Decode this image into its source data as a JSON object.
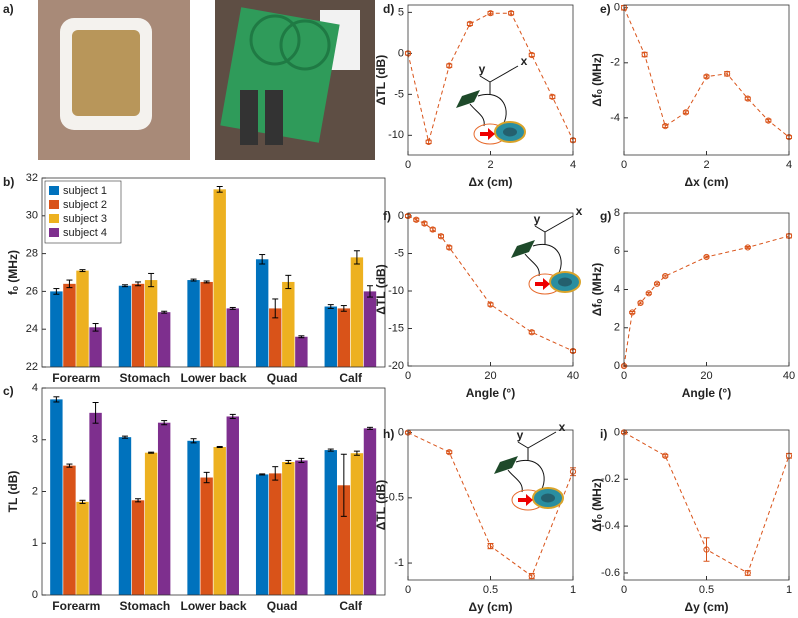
{
  "photo_panel": {
    "label": "a)"
  },
  "chart_data": [
    {
      "type": "bar",
      "panel_label": "b)",
      "ylabel": "fₒ (MHz)",
      "categories": [
        "Forearm",
        "Stomach",
        "Lower back",
        "Quad",
        "Calf"
      ],
      "ylim": [
        22,
        32
      ],
      "yticks": [
        22,
        24,
        26,
        28,
        30,
        32
      ],
      "legend": "upper-left",
      "series": [
        {
          "name": "subject 1",
          "color": "#0072bd",
          "values": [
            26.0,
            26.3,
            26.6,
            27.7,
            25.2
          ],
          "errors": [
            0.15,
            0.05,
            0.05,
            0.25,
            0.1
          ]
        },
        {
          "name": "subject 2",
          "color": "#d95319",
          "values": [
            26.4,
            26.4,
            26.5,
            25.1,
            25.1
          ],
          "errors": [
            0.2,
            0.1,
            0.05,
            0.5,
            0.15
          ]
        },
        {
          "name": "subject 3",
          "color": "#edb120",
          "values": [
            27.1,
            26.6,
            31.4,
            26.5,
            27.8
          ],
          "errors": [
            0.05,
            0.35,
            0.15,
            0.35,
            0.35
          ]
        },
        {
          "name": "subject 4",
          "color": "#7e2f8e",
          "values": [
            24.1,
            24.9,
            25.1,
            23.6,
            26.0
          ],
          "errors": [
            0.2,
            0.05,
            0.05,
            0.05,
            0.3
          ]
        }
      ]
    },
    {
      "type": "bar",
      "panel_label": "c)",
      "ylabel": "TL (dB)",
      "categories": [
        "Forearm",
        "Stomach",
        "Lower back",
        "Quad",
        "Calf"
      ],
      "ylim": [
        0,
        4
      ],
      "yticks": [
        0,
        1,
        2,
        3,
        4
      ],
      "series": [
        {
          "color": "#0072bd",
          "values": [
            3.78,
            3.05,
            2.98,
            2.33,
            2.8
          ],
          "errors": [
            0.05,
            0.02,
            0.04,
            0.01,
            0.02
          ]
        },
        {
          "color": "#d95319",
          "values": [
            2.5,
            1.83,
            2.27,
            2.35,
            2.12
          ],
          "errors": [
            0.03,
            0.03,
            0.1,
            0.13,
            0.6
          ]
        },
        {
          "color": "#edb120",
          "values": [
            1.8,
            2.75,
            2.86,
            2.57,
            2.74
          ],
          "errors": [
            0.03,
            0.01,
            0.01,
            0.03,
            0.04
          ]
        },
        {
          "color": "#7e2f8e",
          "values": [
            3.52,
            3.33,
            3.45,
            2.6,
            3.22
          ],
          "errors": [
            0.2,
            0.04,
            0.04,
            0.04,
            0.02
          ]
        }
      ]
    },
    {
      "type": "line",
      "panel_label": "d)",
      "ylabel": "ΔTL (dB)",
      "xlabel": "Δx (cm)",
      "color": "#d95319",
      "x": [
        0,
        0.5,
        1,
        1.5,
        2,
        2.5,
        3,
        3.5,
        4
      ],
      "values": [
        0,
        -10.8,
        -1.5,
        3.6,
        4.9,
        4.9,
        -0.2,
        -5.3,
        -10.6
      ],
      "errors": [
        0.2,
        0.2,
        0.2,
        0.2,
        0.2,
        0.2,
        0.2,
        0.2,
        0.2
      ],
      "xlim": [
        0,
        4
      ],
      "xticks": [
        0,
        2,
        4
      ],
      "ylim": [
        -12.4,
        5.9
      ],
      "yticks": [
        -10,
        -5,
        0,
        5
      ],
      "inset_axes": [
        "y",
        "x"
      ]
    },
    {
      "type": "line",
      "panel_label": "e)",
      "ylabel": "Δfₒ (MHz)",
      "xlabel": "Δx (cm)",
      "color": "#d95319",
      "x": [
        0,
        0.5,
        1,
        1.5,
        2,
        2.5,
        3,
        3.5,
        4
      ],
      "values": [
        0,
        -1.7,
        -4.3,
        -3.8,
        -2.5,
        -2.4,
        -3.3,
        -4.1,
        -4.7
      ],
      "errors": [
        0.08,
        0.08,
        0.05,
        0.05,
        0.05,
        0.08,
        0.05,
        0.05,
        0.05
      ],
      "xlim": [
        0,
        4
      ],
      "xticks": [
        0,
        2,
        4
      ],
      "ylim": [
        -5.35,
        0.1
      ],
      "yticks": [
        -4,
        -2,
        0
      ]
    },
    {
      "type": "line",
      "panel_label": "f)",
      "ylabel": "ΔTL (dB)",
      "xlabel": "Angle (°)",
      "color": "#d95319",
      "x": [
        0,
        2,
        4,
        6,
        8,
        10,
        20,
        30,
        40
      ],
      "values": [
        0,
        -0.5,
        -1,
        -1.8,
        -2.7,
        -4.2,
        -11.8,
        -15.5,
        -18
      ],
      "errors": [
        0.2,
        0.2,
        0.2,
        0.2,
        0.2,
        0.2,
        0.2,
        0.2,
        0.2
      ],
      "xlim": [
        0,
        40
      ],
      "xticks": [
        0,
        20,
        40
      ],
      "ylim": [
        -20,
        0.4
      ],
      "yticks": [
        -20,
        -15,
        -10,
        -5,
        0
      ],
      "inset_axes": [
        "y",
        "x"
      ]
    },
    {
      "type": "line",
      "panel_label": "g)",
      "ylabel": "Δfₒ (MHz)",
      "xlabel": "Angle (°)",
      "color": "#d95319",
      "x": [
        0,
        2,
        4,
        6,
        8,
        10,
        20,
        30,
        40
      ],
      "values": [
        0,
        2.8,
        3.3,
        3.8,
        4.3,
        4.7,
        5.7,
        6.2,
        6.8
      ],
      "errors": [
        0.05,
        0.05,
        0.05,
        0.05,
        0.05,
        0.05,
        0.05,
        0.05,
        0.1
      ],
      "xlim": [
        0,
        40
      ],
      "xticks": [
        0,
        20,
        40
      ],
      "ylim": [
        0,
        8
      ],
      "yticks": [
        0,
        2,
        4,
        6,
        8
      ]
    },
    {
      "type": "line",
      "panel_label": "h)",
      "ylabel": "ΔTL (dB)",
      "xlabel": "Δy (cm)",
      "color": "#d95319",
      "x": [
        0,
        0.25,
        0.5,
        0.75,
        1
      ],
      "values": [
        0,
        -0.15,
        -0.87,
        -1.1,
        -0.3
      ],
      "errors": [
        0.01,
        0.01,
        0.02,
        0.02,
        0.03
      ],
      "xlim": [
        0,
        1
      ],
      "xticks": [
        0,
        0.5,
        1
      ],
      "ylim": [
        -1.13,
        0.02
      ],
      "yticks": [
        -1,
        -0.5,
        0
      ],
      "inset_axes": [
        "y",
        "x"
      ]
    },
    {
      "type": "line",
      "panel_label": "i)",
      "ylabel": "Δfₒ (MHz)",
      "xlabel": "Δy (cm)",
      "color": "#d95319",
      "x": [
        0,
        0.25,
        0.5,
        0.75,
        1
      ],
      "values": [
        0,
        -0.1,
        -0.5,
        -0.6,
        -0.1
      ],
      "errors": [
        0.005,
        0.005,
        0.05,
        0.01,
        0.01
      ],
      "xlim": [
        0,
        1
      ],
      "xticks": [
        0,
        0.5,
        1
      ],
      "ylim": [
        -0.63,
        0.01
      ],
      "yticks": [
        -0.6,
        -0.4,
        -0.2,
        0
      ]
    }
  ]
}
